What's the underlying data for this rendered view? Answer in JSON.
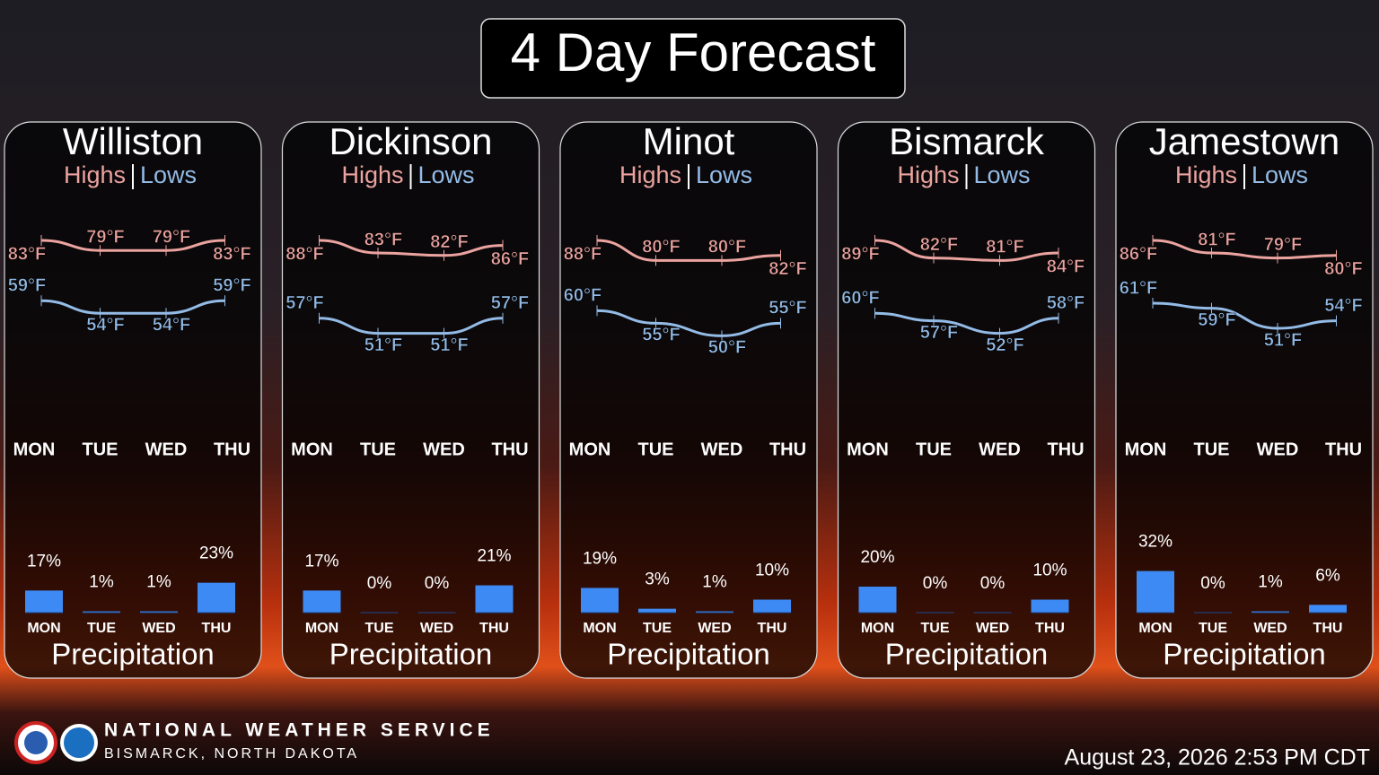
{
  "title": "4 Day Forecast",
  "panels": [
    {
      "city": "Williston",
      "highs_label": "Highs",
      "lows_label": "Lows",
      "days": [
        "MON",
        "TUE",
        "WED",
        "THU"
      ],
      "highs": {
        "values": [
          83,
          79,
          79,
          83
        ],
        "value_labels": [
          "83°F",
          "79°F",
          "79°F",
          "83°F"
        ]
      },
      "lows": {
        "values": [
          59,
          54,
          54,
          59
        ],
        "value_labels": [
          "59°F",
          "54°F",
          "54°F",
          "59°F"
        ]
      },
      "precip": {
        "values": [
          17,
          1,
          1,
          23
        ],
        "value_labels": [
          "17%",
          "1%",
          "1%",
          "23%"
        ]
      },
      "precip_label": "Precipitation"
    },
    {
      "city": "Dickinson",
      "highs_label": "Highs",
      "lows_label": "Lows",
      "days": [
        "MON",
        "TUE",
        "WED",
        "THU"
      ],
      "highs": {
        "values": [
          88,
          83,
          82,
          86
        ],
        "value_labels": [
          "88°F",
          "83°F",
          "82°F",
          "86°F"
        ]
      },
      "lows": {
        "values": [
          57,
          51,
          51,
          57
        ],
        "value_labels": [
          "57°F",
          "51°F",
          "51°F",
          "57°F"
        ]
      },
      "precip": {
        "values": [
          17,
          0,
          0,
          21
        ],
        "value_labels": [
          "17%",
          "0%",
          "0%",
          "21%"
        ]
      },
      "precip_label": "Precipitation"
    },
    {
      "city": "Minot",
      "highs_label": "Highs",
      "lows_label": "Lows",
      "days": [
        "MON",
        "TUE",
        "WED",
        "THU"
      ],
      "highs": {
        "values": [
          88,
          80,
          80,
          82
        ],
        "value_labels": [
          "88°F",
          "80°F",
          "80°F",
          "82°F"
        ]
      },
      "lows": {
        "values": [
          60,
          55,
          50,
          55
        ],
        "value_labels": [
          "60°F",
          "55°F",
          "50°F",
          "55°F"
        ]
      },
      "precip": {
        "values": [
          19,
          3,
          1,
          10
        ],
        "value_labels": [
          "19%",
          "3%",
          "1%",
          "10%"
        ]
      },
      "precip_label": "Precipitation"
    },
    {
      "city": "Bismarck",
      "highs_label": "Highs",
      "lows_label": "Lows",
      "days": [
        "MON",
        "TUE",
        "WED",
        "THU"
      ],
      "highs": {
        "values": [
          89,
          82,
          81,
          84
        ],
        "value_labels": [
          "89°F",
          "82°F",
          "81°F",
          "84°F"
        ]
      },
      "lows": {
        "values": [
          60,
          57,
          52,
          58
        ],
        "value_labels": [
          "60°F",
          "57°F",
          "52°F",
          "58°F"
        ]
      },
      "precip": {
        "values": [
          20,
          0,
          0,
          10
        ],
        "value_labels": [
          "20%",
          "0%",
          "0%",
          "10%"
        ]
      },
      "precip_label": "Precipitation"
    },
    {
      "city": "Jamestown",
      "highs_label": "Highs",
      "lows_label": "Lows",
      "days": [
        "MON",
        "TUE",
        "WED",
        "THU"
      ],
      "highs": {
        "values": [
          86,
          81,
          79,
          80
        ],
        "value_labels": [
          "86°F",
          "81°F",
          "79°F",
          "80°F"
        ]
      },
      "lows": {
        "values": [
          61,
          59,
          51,
          54
        ],
        "value_labels": [
          "61°F",
          "59°F",
          "51°F",
          "54°F"
        ]
      },
      "precip": {
        "values": [
          32,
          0,
          1,
          6
        ],
        "value_labels": [
          "32%",
          "0%",
          "1%",
          "6%"
        ]
      },
      "precip_label": "Precipitation"
    }
  ],
  "footer": {
    "org": "NATIONAL WEATHER SERVICE",
    "office": "BISMARCK, NORTH DAKOTA",
    "timestamp": "August 23, 2026 2:53 PM CDT"
  }
}
